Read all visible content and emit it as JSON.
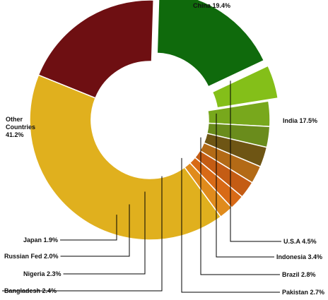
{
  "chart_data": {
    "type": "pie",
    "style": "donut",
    "title": "",
    "slices": [
      {
        "name": "China",
        "value": 19.4,
        "color": "#6e0f12",
        "label": "China  19.4%",
        "exploded": false
      },
      {
        "name": "India",
        "value": 17.5,
        "color": "#0f6a0c",
        "label": "India 17.5%",
        "exploded": true
      },
      {
        "name": "U.S.A",
        "value": 4.5,
        "color": "#84bf19",
        "label": "U.S.A  4.5%",
        "exploded": true
      },
      {
        "name": "Indonesia",
        "value": 3.4,
        "color": "#78a81c",
        "label": "Indonesia 3.4%",
        "exploded": false
      },
      {
        "name": "Brazil",
        "value": 2.8,
        "color": "#6a8c1c",
        "label": "Brazil 2.8%",
        "exploded": false
      },
      {
        "name": "Pakistan",
        "value": 2.7,
        "color": "#6e5514",
        "label": "Pakistan 2.7%",
        "exploded": false
      },
      {
        "name": "Bangladesh",
        "value": 2.4,
        "color": "#b36a16",
        "label": "Bangladesh 2.4%",
        "exploded": false
      },
      {
        "name": "Nigeria",
        "value": 2.3,
        "color": "#c45c14",
        "label": "Nigeria 2.3%",
        "exploded": false
      },
      {
        "name": "Russian Fed",
        "value": 2.0,
        "color": "#d86a16",
        "label": "Russian Fed 2.0%",
        "exploded": false
      },
      {
        "name": "Japan",
        "value": 1.9,
        "color": "#e08b1c",
        "label": "Japan 1.9%",
        "exploded": false
      },
      {
        "name": "Other Countries",
        "value": 41.2,
        "color": "#e0b01e",
        "label_lines": [
          "Other",
          "Countries",
          "41.2%"
        ],
        "exploded": false
      }
    ],
    "legend": "none"
  }
}
